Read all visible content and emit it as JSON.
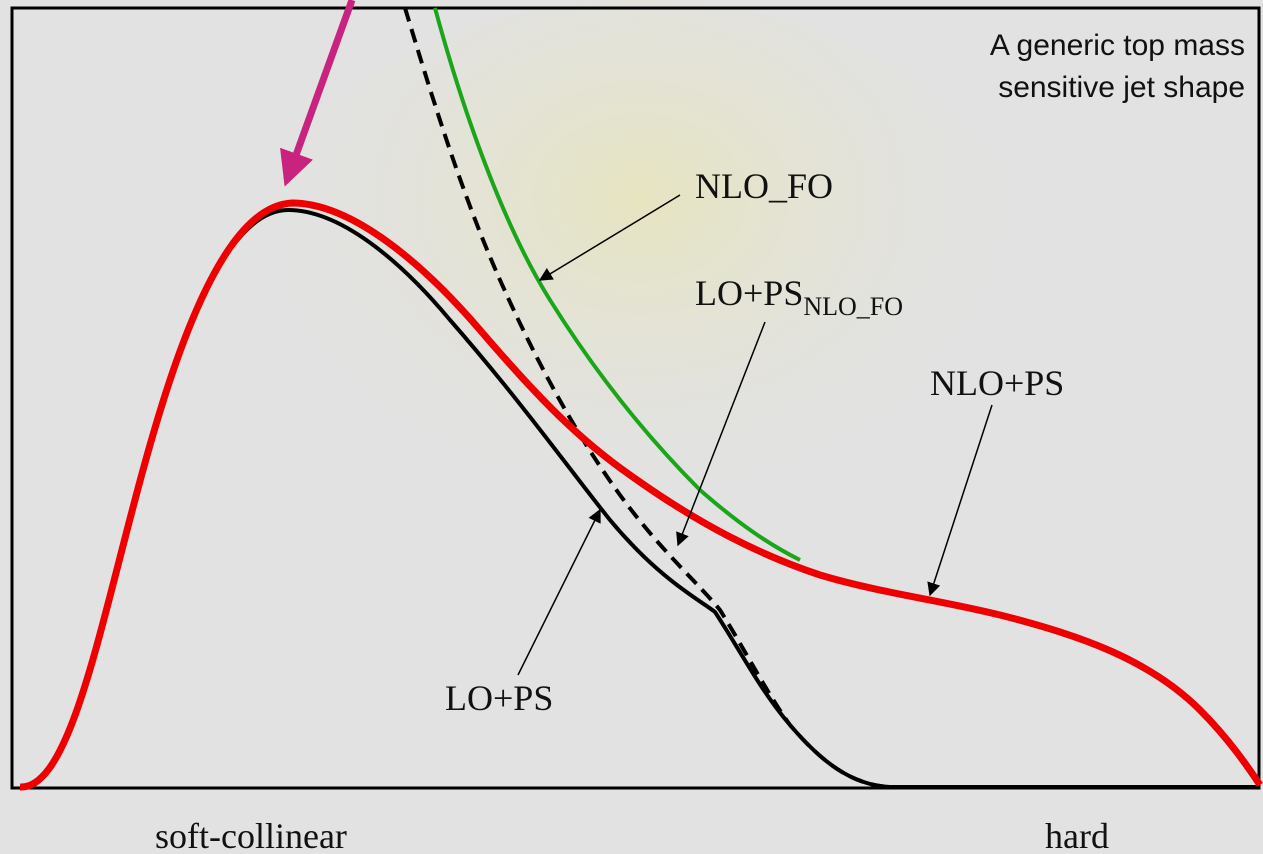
{
  "header": {
    "title_lines": [
      "A generic top mass",
      "sensitive jet shape"
    ]
  },
  "curve_labels": [
    {
      "text": "NLO_FO"
    },
    {
      "text": "LO+PS",
      "subscript": "NLO_FO"
    },
    {
      "text": "NLO+PS"
    },
    {
      "text": "LO+PS"
    }
  ],
  "axis": {
    "left_label": "soft-collinear",
    "right_label": "hard"
  }
}
